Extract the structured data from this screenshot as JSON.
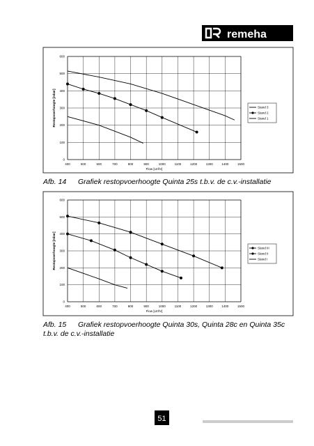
{
  "logo": "remeha",
  "chart_data": [
    {
      "type": "line",
      "ylabel": "Restopvoerhoogte [mbar]",
      "xlabel": "Flow [Ltr/hr]",
      "xlim": [
        400,
        1500
      ],
      "xticks": [
        400,
        500,
        600,
        700,
        800,
        900,
        1000,
        1100,
        1200,
        1300,
        1400,
        1500
      ],
      "ylim": [
        0,
        600
      ],
      "yticks": [
        0,
        100,
        200,
        300,
        400,
        500,
        600
      ],
      "grid": true,
      "series": [
        {
          "name": "Stand 3",
          "color": "#000000",
          "marker": "none",
          "x": [
            400,
            600,
            800,
            1000,
            1200,
            1400,
            1460
          ],
          "values": [
            515,
            480,
            440,
            385,
            320,
            255,
            230
          ]
        },
        {
          "name": "Stand 2",
          "color": "#000000",
          "marker": "circle",
          "x": [
            400,
            500,
            600,
            700,
            800,
            900,
            1000,
            1220
          ],
          "values": [
            440,
            410,
            385,
            355,
            320,
            285,
            245,
            160
          ]
        },
        {
          "name": "Stand 1",
          "color": "#000000",
          "marker": "none",
          "x": [
            400,
            600,
            800,
            880
          ],
          "values": [
            250,
            200,
            130,
            95
          ]
        }
      ]
    },
    {
      "type": "line",
      "ylabel": "Restopvoerhoogte [mbar]",
      "xlabel": "Flow [Ltr/hr]",
      "xlim": [
        400,
        1500
      ],
      "xticks": [
        400,
        500,
        600,
        700,
        800,
        900,
        1000,
        1100,
        1200,
        1300,
        1400,
        1500
      ],
      "ylim": [
        0,
        600
      ],
      "yticks": [
        0,
        100,
        200,
        300,
        400,
        500,
        600
      ],
      "grid": true,
      "series": [
        {
          "name": "Stand III",
          "color": "#000000",
          "marker": "circle",
          "x": [
            400,
            600,
            800,
            1000,
            1200,
            1380
          ],
          "values": [
            505,
            465,
            410,
            340,
            270,
            200
          ]
        },
        {
          "name": "Stand II",
          "color": "#000000",
          "marker": "circle",
          "x": [
            400,
            550,
            700,
            800,
            900,
            1000,
            1120
          ],
          "values": [
            400,
            360,
            305,
            260,
            220,
            180,
            140
          ]
        },
        {
          "name": "Stand I",
          "color": "#000000",
          "marker": "none",
          "x": [
            400,
            600,
            700,
            780
          ],
          "values": [
            200,
            135,
            100,
            80
          ]
        }
      ]
    }
  ],
  "captions": [
    {
      "label": "Afb. 14",
      "text": "Grafiek restopvoerhoogte Quinta 25s t.b.v. de c.v.-installatie"
    },
    {
      "label": "Afb. 15",
      "text": "Grafiek restopvoerhoogte Quinta 30s, Quinta 28c en Quinta 35c t.b.v. de c.v.-installatie"
    }
  ],
  "page_number": "51"
}
